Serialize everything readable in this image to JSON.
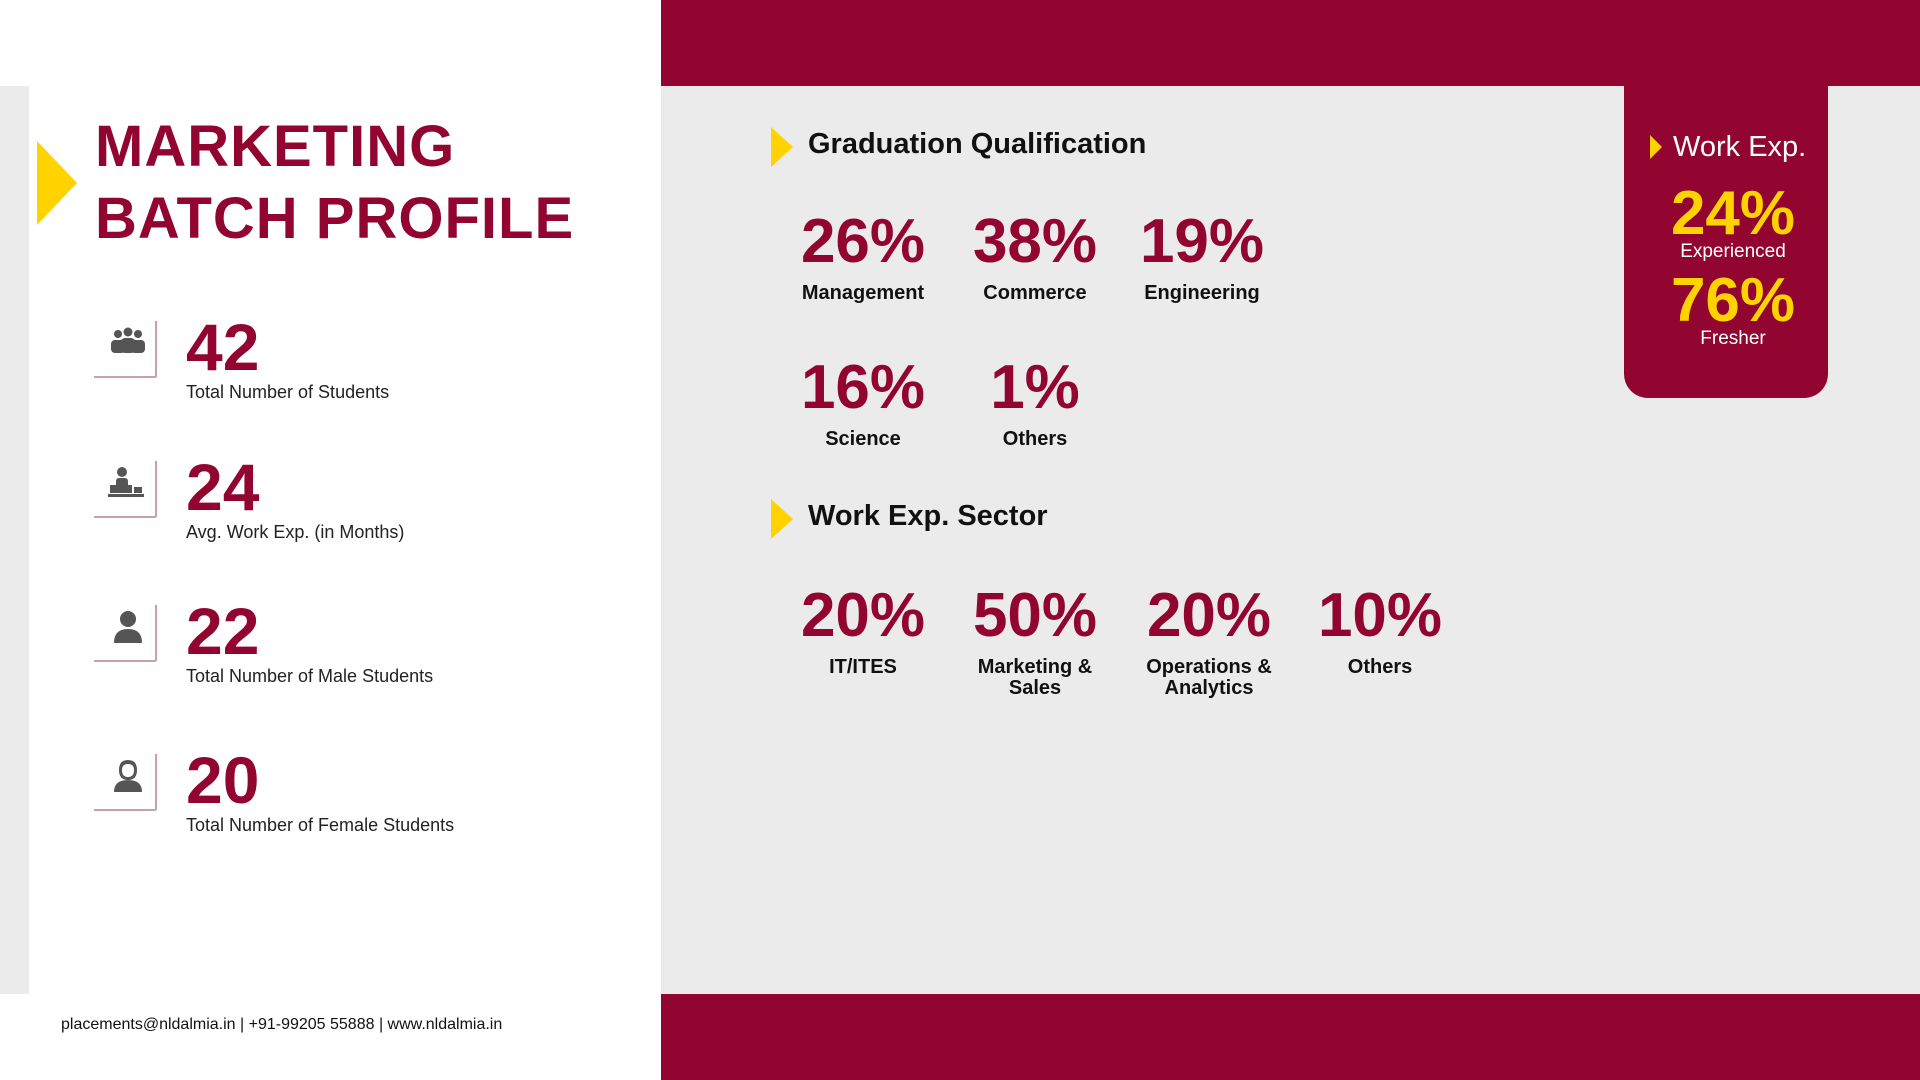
{
  "header": {
    "title_lines": [
      "MARKETING",
      "BATCH PROFILE"
    ]
  },
  "stats": [
    {
      "value": 42,
      "label": "Total Number of Students"
    },
    {
      "value": 24,
      "label": "Avg. Work Exp. (in Months)"
    },
    {
      "value": 22,
      "label": "Total Number of Male Students"
    },
    {
      "value": 20,
      "label": "Total Number of Female Students"
    }
  ],
  "graduation": {
    "title": "Graduation Qualification",
    "items": [
      {
        "value": "26%",
        "label": "Management"
      },
      {
        "value": "38%",
        "label": "Commerce"
      },
      {
        "value": "19%",
        "label": "Engineering"
      },
      {
        "value": "16%",
        "label": "Science"
      },
      {
        "value": "1%",
        "label": "Others"
      }
    ]
  },
  "sector": {
    "title": "Work Exp. Sector",
    "items": [
      {
        "value": "20%",
        "label": "IT/ITES"
      },
      {
        "value": "50%",
        "label": "Marketing & Sales"
      },
      {
        "value": "20%",
        "label": "Operations & Analytics"
      },
      {
        "value": "10%",
        "label": "Others"
      }
    ]
  },
  "work_exp": {
    "title": "Work Exp.",
    "items": [
      {
        "value": "24%",
        "label": "Experienced"
      },
      {
        "value": "76%",
        "label": "Fresher"
      }
    ]
  },
  "footer": "placements@nldalmia.in | +91-99205 55888 | www.nldalmia.in"
}
